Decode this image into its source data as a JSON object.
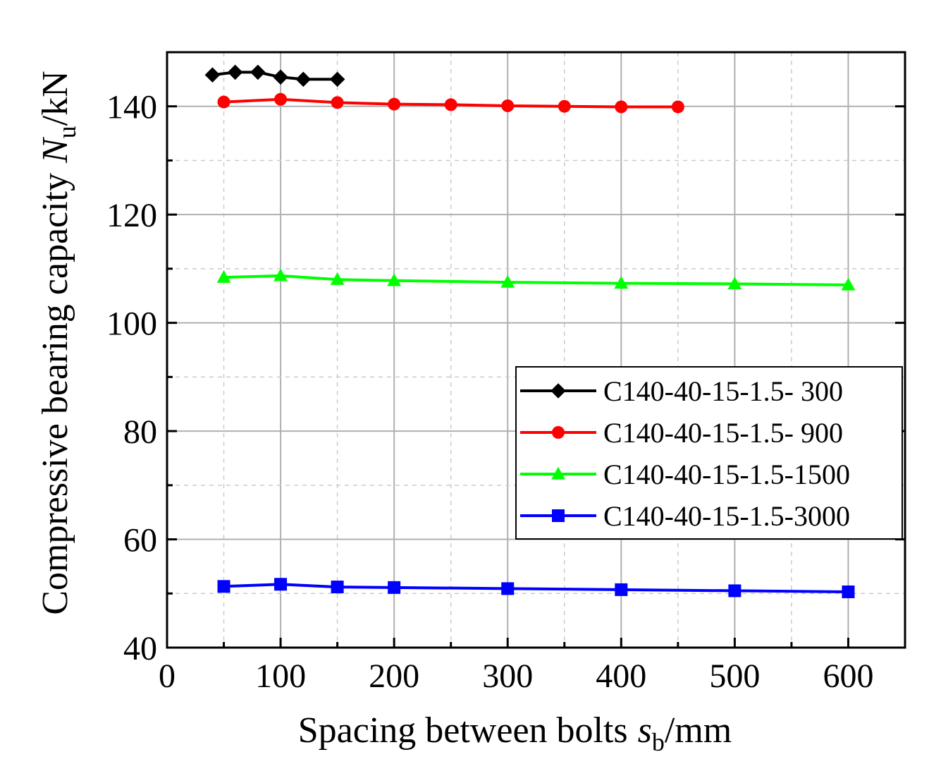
{
  "chart_data": {
    "type": "line",
    "title": "",
    "xlabel": "Spacing between bolts",
    "xlabel_symbol": "s",
    "xlabel_sub": "b",
    "xlabel_unit": "/mm",
    "ylabel": "Compressive bearing capacity",
    "ylabel_symbol": "N",
    "ylabel_sub": "u",
    "ylabel_unit": "/kN",
    "xlim": [
      0,
      650
    ],
    "ylim": [
      40,
      150
    ],
    "xticks": [
      0,
      100,
      200,
      300,
      400,
      500,
      600
    ],
    "yticks": [
      40,
      60,
      80,
      100,
      120,
      140
    ],
    "grid": true,
    "legend_position": "right",
    "series": [
      {
        "name": "C140-40-15-1.5- 300",
        "color": "#000000",
        "marker": "diamond",
        "x": [
          40,
          60,
          80,
          100,
          120,
          150
        ],
        "y": [
          145.8,
          146.3,
          146.3,
          145.4,
          145.0,
          145.0
        ]
      },
      {
        "name": "C140-40-15-1.5- 900",
        "color": "#ff0000",
        "marker": "circle",
        "x": [
          50,
          100,
          150,
          200,
          250,
          300,
          350,
          400,
          450
        ],
        "y": [
          140.8,
          141.3,
          140.7,
          140.4,
          140.3,
          140.1,
          140.0,
          139.9,
          139.9
        ]
      },
      {
        "name": "C140-40-15-1.5-1500",
        "color": "#00ff00",
        "marker": "triangle",
        "x": [
          50,
          100,
          150,
          200,
          300,
          400,
          500,
          600
        ],
        "y": [
          108.4,
          108.7,
          108.0,
          107.8,
          107.5,
          107.3,
          107.2,
          107.0
        ]
      },
      {
        "name": "C140-40-15-1.5-3000",
        "color": "#0000ff",
        "marker": "square",
        "x": [
          50,
          100,
          150,
          200,
          300,
          400,
          500,
          600
        ],
        "y": [
          51.3,
          51.7,
          51.2,
          51.1,
          50.9,
          50.7,
          50.5,
          50.3
        ]
      }
    ]
  }
}
